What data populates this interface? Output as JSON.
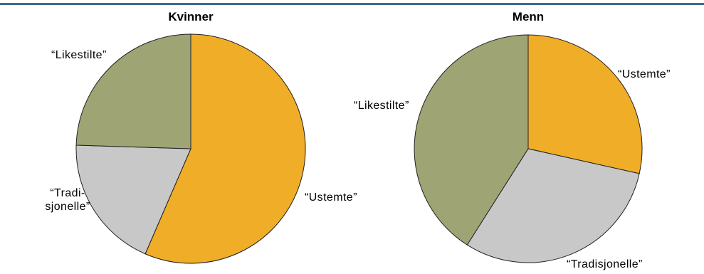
{
  "colors": {
    "top_rule": "#3f6a8c",
    "slice_outline": "#231f20",
    "Ustemte": "#f0ad27",
    "Tradisjonelle": "#c8c8c9",
    "Likestilte": "#9ea473"
  },
  "chart_data": [
    {
      "type": "pie",
      "title": "Kvinner",
      "slices": [
        {
          "key": "Ustemte",
          "label": "“Ustemte”",
          "label_lines": [
            "“Ustemte”"
          ],
          "value": 56.5,
          "color": "#f0ad27"
        },
        {
          "key": "Tradisjonelle",
          "label": "“Tradi-sjonelle”",
          "label_lines": [
            "“Tradi-",
            "sjonelle”"
          ],
          "value": 19.0,
          "color": "#c8c8c9"
        },
        {
          "key": "Likestilte",
          "label": "“Likestilte”",
          "label_lines": [
            "“Likestilte”"
          ],
          "value": 24.5,
          "color": "#9ea473"
        }
      ]
    },
    {
      "type": "pie",
      "title": "Menn",
      "slices": [
        {
          "key": "Ustemte",
          "label": "“Ustemte”",
          "label_lines": [
            "“Ustemte”"
          ],
          "value": 28.5,
          "color": "#f0ad27"
        },
        {
          "key": "Tradisjonelle",
          "label": "“Tradisjonelle”",
          "label_lines": [
            "“Tradisjonelle”"
          ],
          "value": 30.5,
          "color": "#c8c8c9"
        },
        {
          "key": "Likestilte",
          "label": "“Likestilte”",
          "label_lines": [
            "“Likestilte”"
          ],
          "value": 41.0,
          "color": "#9ea473"
        }
      ]
    }
  ]
}
